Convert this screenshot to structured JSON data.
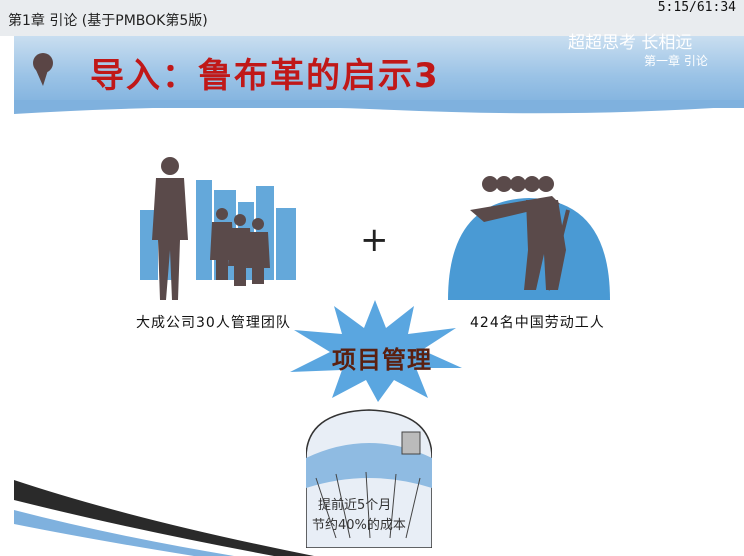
{
  "header": {
    "chapter": "第1章 引论 (基于PMBOK第5版)",
    "timecode": "5:15/61:34"
  },
  "slide": {
    "title": "导入：鲁布革的启示3",
    "brand": "超超思考 长相远",
    "chapter_label": "第一章 引论",
    "left_label": "大成公司30人管理团队",
    "right_label": "424名中国劳动工人",
    "plus": "+",
    "center_label": "项目管理",
    "result_line1": "提前近5个月",
    "result_line2": "节约40%的成本"
  },
  "colors": {
    "title": "#c01818",
    "banner": "#8fbbe2",
    "silhouette": "#5a4a4a",
    "sky": "#4a9ad4",
    "star": "#5aa6e0"
  },
  "icons": [
    "pin-icon",
    "managers-silhouette",
    "workers-silhouette",
    "star-burst",
    "dam-illustration"
  ]
}
